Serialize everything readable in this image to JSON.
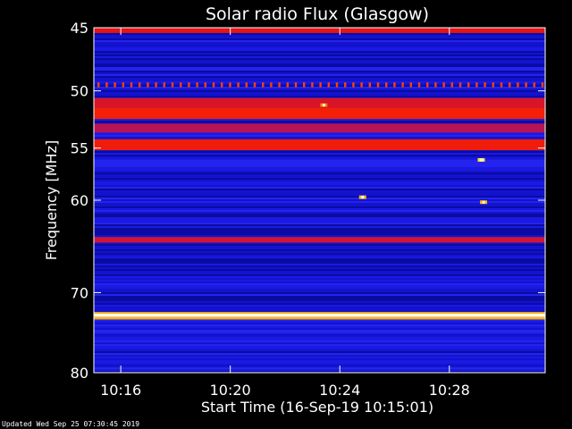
{
  "footer": {
    "updated": "Updated Wed Sep 25 07:30:45 2019"
  },
  "colors": {
    "background": "#000000",
    "axis": "#ffffff",
    "low": "#0a0adc",
    "high": "#ff2000",
    "peak": "#ffffe0"
  },
  "chart_data": {
    "type": "heatmap",
    "title": "Solar radio Flux (Glasgow)",
    "xlabel": "Start Time (16-Sep-19 10:15:01)",
    "ylabel": "Frequency [MHz]",
    "xlim": [
      "10:15:01",
      "10:31:30"
    ],
    "ylim": [
      45,
      80
    ],
    "y_inverted": true,
    "colormap": "black-blue-red-yellow-white",
    "x_ticks": [
      "10:16",
      "10:20",
      "10:24",
      "10:28"
    ],
    "y_ticks": [
      45,
      50,
      55,
      60,
      70,
      80
    ],
    "bands_mhz": [
      {
        "low": 45.0,
        "high": 45.4,
        "level": 0.65
      },
      {
        "low": 49.3,
        "high": 49.7,
        "level": 0.8,
        "pattern": "dashed"
      },
      {
        "low": 50.6,
        "high": 51.4,
        "level": 0.62
      },
      {
        "low": 51.4,
        "high": 52.4,
        "level": 0.72
      },
      {
        "low": 52.8,
        "high": 53.6,
        "level": 0.55
      },
      {
        "low": 54.2,
        "high": 55.2,
        "level": 0.7
      },
      {
        "low": 63.8,
        "high": 64.4,
        "level": 0.6
      },
      {
        "low": 72.3,
        "high": 72.5,
        "level": 0.9
      },
      {
        "low": 72.5,
        "high": 72.9,
        "level": 1.0
      },
      {
        "low": 72.9,
        "high": 73.2,
        "level": 0.9
      }
    ],
    "bursts": [
      {
        "time": "10:23:25",
        "freq_mhz": 51.2,
        "level": 0.85
      },
      {
        "time": "10:24:50",
        "freq_mhz": 59.7,
        "level": 0.9
      },
      {
        "time": "10:29:10",
        "freq_mhz": 56.1,
        "level": 0.95
      },
      {
        "time": "10:29:15",
        "freq_mhz": 60.2,
        "level": 0.9
      }
    ]
  }
}
